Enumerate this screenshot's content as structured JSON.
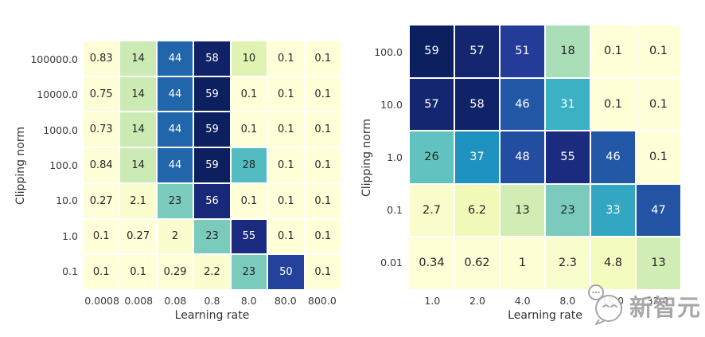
{
  "colors": {
    "background": "#ffffff",
    "colormap_name": "YlGnBu",
    "colormap_stops": [
      "#ffffd9",
      "#edf8b1",
      "#c7e9b4",
      "#7fcdbb",
      "#41b6c4",
      "#1d91c0",
      "#225ea8",
      "#253494",
      "#081d58"
    ],
    "annot_dark": "#262626",
    "annot_light": "#ffffff",
    "tick_text": "#3a3a3a",
    "watermark_gray": "#9b9b9b"
  },
  "chart_data": [
    {
      "type": "heatmap",
      "title": "",
      "xlabel": "Learning rate",
      "ylabel": "Clipping norm",
      "x_ticks": [
        "0.0008",
        "0.008",
        "0.08",
        "0.8",
        "8.0",
        "80.0",
        "800.0"
      ],
      "y_ticks": [
        "100000.0",
        "10000.0",
        "1000.0",
        "100.0",
        "10.0",
        "1.0",
        "0.1"
      ],
      "vmin": 0,
      "vmax": 60,
      "grid": false,
      "legend": "none",
      "cells": [
        [
          "0.83",
          "14",
          "44",
          "58",
          "10",
          "0.1",
          "0.1"
        ],
        [
          "0.75",
          "14",
          "44",
          "59",
          "0.1",
          "0.1",
          "0.1"
        ],
        [
          "0.73",
          "14",
          "44",
          "59",
          "0.1",
          "0.1",
          "0.1"
        ],
        [
          "0.84",
          "14",
          "44",
          "59",
          "28",
          "0.1",
          "0.1"
        ],
        [
          "0.27",
          "2.1",
          "23",
          "56",
          "0.1",
          "0.1",
          "0.1"
        ],
        [
          "0.1",
          "0.27",
          "2",
          "23",
          "55",
          "0.1",
          "0.1"
        ],
        [
          "0.1",
          "0.1",
          "0.29",
          "2.2",
          "23",
          "50",
          "0.1"
        ]
      ]
    },
    {
      "type": "heatmap",
      "title": "",
      "xlabel": "Learning rate",
      "ylabel": "Clipping norm",
      "x_ticks": [
        "1.0",
        "2.0",
        "4.0",
        "8.0",
        "16.0",
        "32.0"
      ],
      "y_ticks": [
        "100.0",
        "10.0",
        "1.0",
        "0.1",
        "0.01"
      ],
      "vmin": 0,
      "vmax": 60,
      "grid": false,
      "legend": "none",
      "cells": [
        [
          "59",
          "57",
          "51",
          "18",
          "0.1",
          "0.1"
        ],
        [
          "57",
          "58",
          "46",
          "31",
          "0.1",
          "0.1"
        ],
        [
          "26",
          "37",
          "48",
          "55",
          "46",
          "0.1"
        ],
        [
          "2.7",
          "6.2",
          "13",
          "23",
          "33",
          "47"
        ],
        [
          "0.34",
          "0.62",
          "1",
          "2.3",
          "4.8",
          "13"
        ]
      ]
    }
  ],
  "watermark": {
    "text": "新智元",
    "logo": "chat-bubble-logo"
  }
}
